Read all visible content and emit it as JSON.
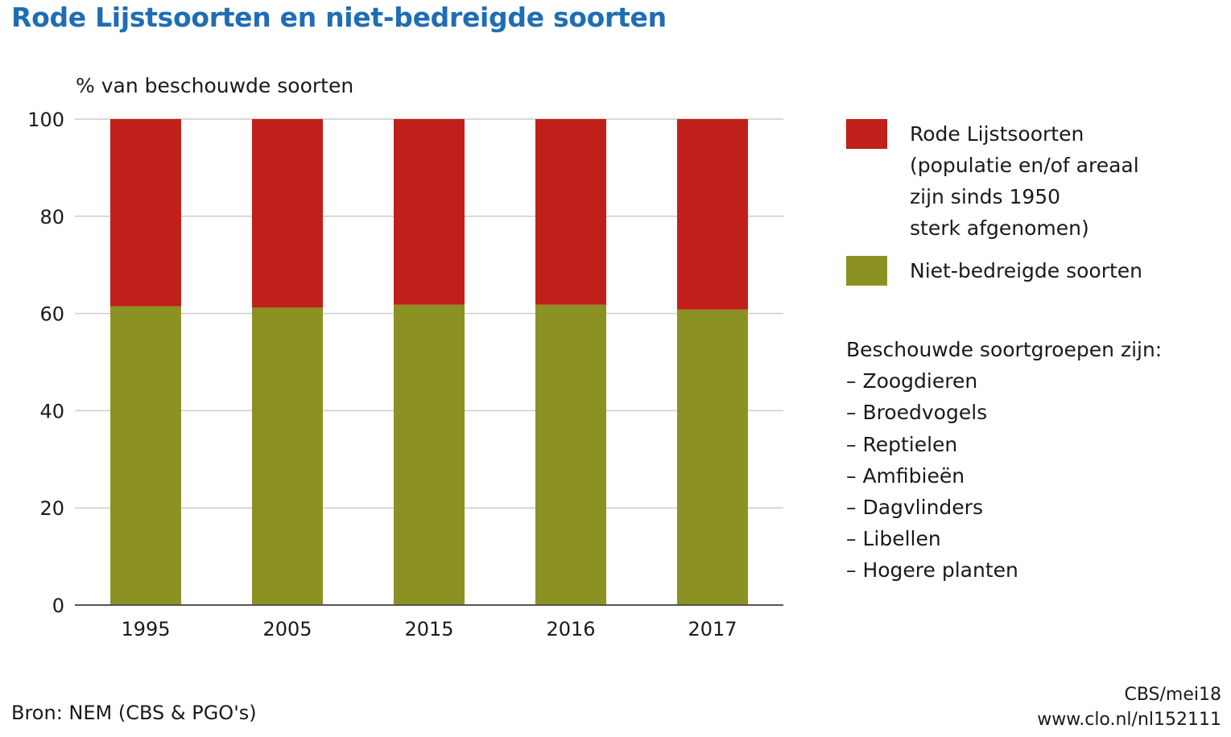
{
  "chart_data": {
    "type": "bar",
    "stacked": true,
    "title": "Rode Lijstsoorten en niet-bedreigde soorten",
    "ylabel": "% van beschouwde soorten",
    "xlabel": "",
    "ylim": [
      0,
      100
    ],
    "yticks": [
      "0",
      "20",
      "40",
      "60",
      "80",
      "100"
    ],
    "categories": [
      "1995",
      "2005",
      "2015",
      "2016",
      "2017"
    ],
    "grid": true,
    "legend_position": "right",
    "series": [
      {
        "name": "Niet-bedreigde soorten",
        "values": [
          61.5,
          61.2,
          61.8,
          61.8,
          60.8
        ],
        "color": "#8b9122"
      },
      {
        "name": "Rode Lijstsoorten (populatie en/of areaal zijn sinds 1950 sterk afgenomen)",
        "values": [
          38.5,
          38.8,
          38.2,
          38.2,
          39.2
        ],
        "color": "#c01f1a"
      }
    ]
  },
  "legend": {
    "items": [
      {
        "lines": [
          "Rode Lijstsoorten",
          "(populatie en/of areaal",
          "zijn sinds 1950",
          "sterk afgenomen)"
        ],
        "color": "#c01f1a"
      },
      {
        "lines": [
          "Niet-bedreigde soorten"
        ],
        "color": "#8b9122"
      }
    ]
  },
  "notes": {
    "heading": "Beschouwde soortgroepen zijn:",
    "items": [
      "– Zoogdieren",
      "– Broedvogels",
      "– Reptielen",
      "– Amfibieën",
      "– Dagvlinders",
      "– Libellen",
      "– Hogere planten"
    ]
  },
  "source": "Bron: NEM (CBS & PGO's)",
  "credit": {
    "line1": "CBS/mei18",
    "line2": "www.clo.nl/nl152111"
  },
  "colors": {
    "title": "#1f6db5",
    "grid": "#cccccc",
    "axis": "#555555"
  }
}
